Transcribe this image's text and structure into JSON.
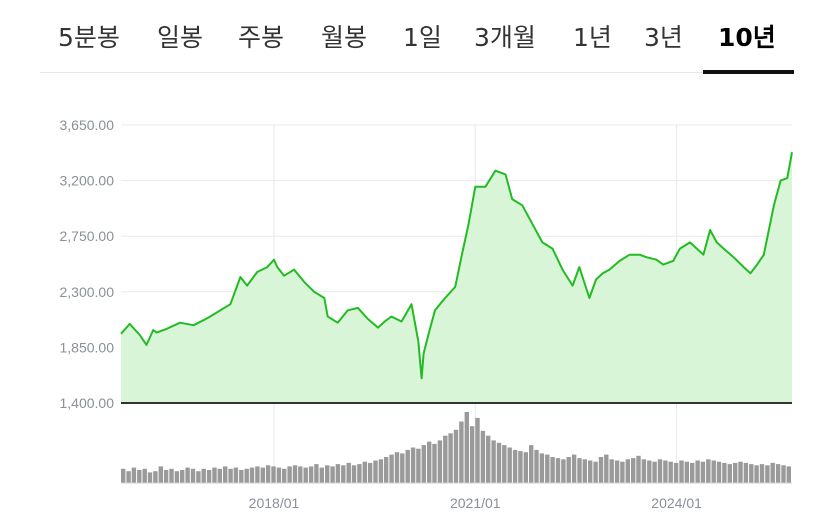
{
  "tabs": [
    {
      "label": "5분봉",
      "active": false
    },
    {
      "label": "일봉",
      "active": false
    },
    {
      "label": "주봉",
      "active": false
    },
    {
      "label": "월봉",
      "active": false
    },
    {
      "label": "1일",
      "active": false
    },
    {
      "label": "3개월",
      "active": false
    },
    {
      "label": "1년",
      "active": false
    },
    {
      "label": "3년",
      "active": false
    },
    {
      "label": "10년",
      "active": true
    }
  ],
  "colors": {
    "line": "#22bb22",
    "area": "#d8f5d8",
    "volume": "#9a9a9a",
    "grid": "#e8e8e8",
    "axis": "#333333",
    "tab_active": "#000000",
    "tab_inactive": "#333333"
  },
  "chart_data": {
    "type": "area",
    "ylim": [
      1400,
      3650
    ],
    "y_ticks": [
      "3,650.00",
      "3,200.00",
      "2,750.00",
      "2,300.00",
      "1,850.00",
      "1,400.00"
    ],
    "y_tick_values": [
      3650,
      3200,
      2750,
      2300,
      1850,
      1400
    ],
    "x_ticks": [
      "2018/01",
      "2021/01",
      "2024/01"
    ],
    "x_tick_values": [
      2018.0,
      2021.0,
      2024.0
    ],
    "xlim": [
      2015.72,
      2025.72
    ],
    "grid": true,
    "series": [
      {
        "x": [
          2015.72,
          2015.85,
          2016.0,
          2016.1,
          2016.2,
          2016.25,
          2016.4,
          2016.6,
          2016.8,
          2016.95,
          2017.05,
          2017.2,
          2017.35,
          2017.5,
          2017.6,
          2017.75,
          2017.9,
          2018.0,
          2018.05,
          2018.15,
          2018.3,
          2018.45,
          2018.6,
          2018.75,
          2018.8,
          2018.95,
          2019.1,
          2019.25,
          2019.4,
          2019.55,
          2019.65,
          2019.75,
          2019.9,
          2020.05,
          2020.15,
          2020.2,
          2020.23,
          2020.3,
          2020.4,
          2020.55,
          2020.7,
          2020.8,
          2020.9,
          2021.0,
          2021.15,
          2021.3,
          2021.45,
          2021.55,
          2021.7,
          2021.85,
          2022.0,
          2022.15,
          2022.3,
          2022.45,
          2022.55,
          2022.7,
          2022.8,
          2022.9,
          2023.0,
          2023.15,
          2023.3,
          2023.45,
          2023.55,
          2023.7,
          2023.8,
          2023.95,
          2024.05,
          2024.2,
          2024.4,
          2024.5,
          2024.6,
          2024.7,
          2024.85,
          2025.0,
          2025.1,
          2025.2,
          2025.3,
          2025.45,
          2025.55,
          2025.65,
          2025.72
        ],
        "y": [
          1960,
          2040,
          1950,
          1870,
          1990,
          1970,
          2000,
          2050,
          2030,
          2070,
          2100,
          2150,
          2200,
          2420,
          2350,
          2460,
          2500,
          2560,
          2500,
          2430,
          2480,
          2380,
          2300,
          2250,
          2100,
          2050,
          2150,
          2170,
          2080,
          2010,
          2060,
          2100,
          2060,
          2200,
          1900,
          1600,
          1800,
          1950,
          2150,
          2250,
          2340,
          2600,
          2850,
          3150,
          3150,
          3280,
          3250,
          3050,
          3000,
          2850,
          2700,
          2650,
          2480,
          2350,
          2500,
          2250,
          2400,
          2450,
          2480,
          2550,
          2600,
          2600,
          2580,
          2560,
          2520,
          2550,
          2650,
          2700,
          2600,
          2800,
          2700,
          2650,
          2580,
          2500,
          2450,
          2520,
          2600,
          3000,
          3200,
          3220,
          3430
        ]
      }
    ],
    "volume": [
      12,
      10,
      13,
      11,
      12,
      9,
      10,
      14,
      11,
      12,
      10,
      11,
      13,
      12,
      10,
      12,
      11,
      13,
      12,
      14,
      12,
      13,
      11,
      12,
      13,
      14,
      13,
      15,
      14,
      13,
      12,
      14,
      15,
      14,
      13,
      14,
      16,
      13,
      15,
      14,
      16,
      15,
      17,
      15,
      16,
      18,
      17,
      19,
      20,
      22,
      24,
      26,
      25,
      28,
      30,
      29,
      32,
      35,
      33,
      36,
      40,
      42,
      45,
      52,
      60,
      48,
      55,
      44,
      40,
      36,
      34,
      32,
      30,
      28,
      27,
      26,
      32,
      28,
      25,
      24,
      22,
      21,
      20,
      22,
      24,
      21,
      20,
      19,
      18,
      22,
      24,
      20,
      19,
      18,
      20,
      21,
      23,
      20,
      19,
      18,
      20,
      19,
      18,
      17,
      19,
      18,
      17,
      19,
      18,
      20,
      19,
      18,
      17,
      16,
      17,
      18,
      17,
      16,
      15,
      16,
      15,
      17,
      16,
      15,
      14
    ]
  }
}
